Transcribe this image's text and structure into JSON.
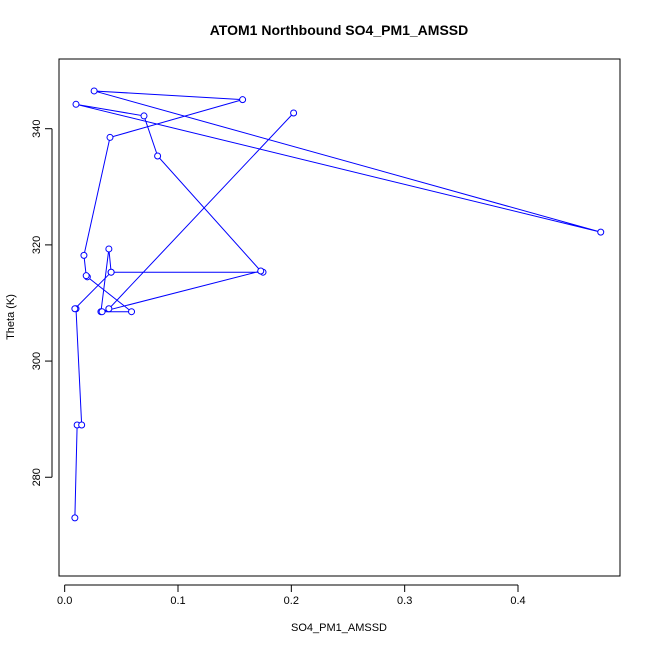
{
  "chart_data": {
    "type": "line",
    "title": "ATOM1 Northbound SO4_PM1_AMSSD",
    "xlabel": "SO4_PM1_AMSSD",
    "ylabel": "Theta (K)",
    "xlim": [
      -0.005,
      0.49
    ],
    "ylim": [
      263,
      352
    ],
    "x_ticks": [
      0.0,
      0.1,
      0.2,
      0.3,
      0.4
    ],
    "x_tick_labels": [
      "0.0",
      "0.1",
      "0.2",
      "0.3",
      "0.4"
    ],
    "y_ticks": [
      280,
      300,
      320,
      340
    ],
    "y_tick_labels": [
      "280",
      "300",
      "320",
      "340"
    ],
    "grid": false,
    "markers": "open-circle",
    "series": [
      {
        "color": "#0000ff",
        "x": [
          0.009,
          0.011,
          0.015,
          0.01,
          0.009,
          0.041,
          0.175,
          0.041,
          0.039,
          0.032,
          0.059,
          0.02,
          0.019,
          0.017,
          0.04,
          0.157,
          0.026,
          0.473,
          0.01,
          0.07,
          0.082,
          0.173,
          0.033,
          0.039,
          0.202
        ],
        "y": [
          273.0,
          289.0,
          289.0,
          309.0,
          309.0,
          315.3,
          315.3,
          315.3,
          319.3,
          308.5,
          308.5,
          314.5,
          314.7,
          318.2,
          338.5,
          345.0,
          346.5,
          322.2,
          344.2,
          342.2,
          335.3,
          315.5,
          308.5,
          309.0,
          342.7
        ]
      }
    ]
  }
}
